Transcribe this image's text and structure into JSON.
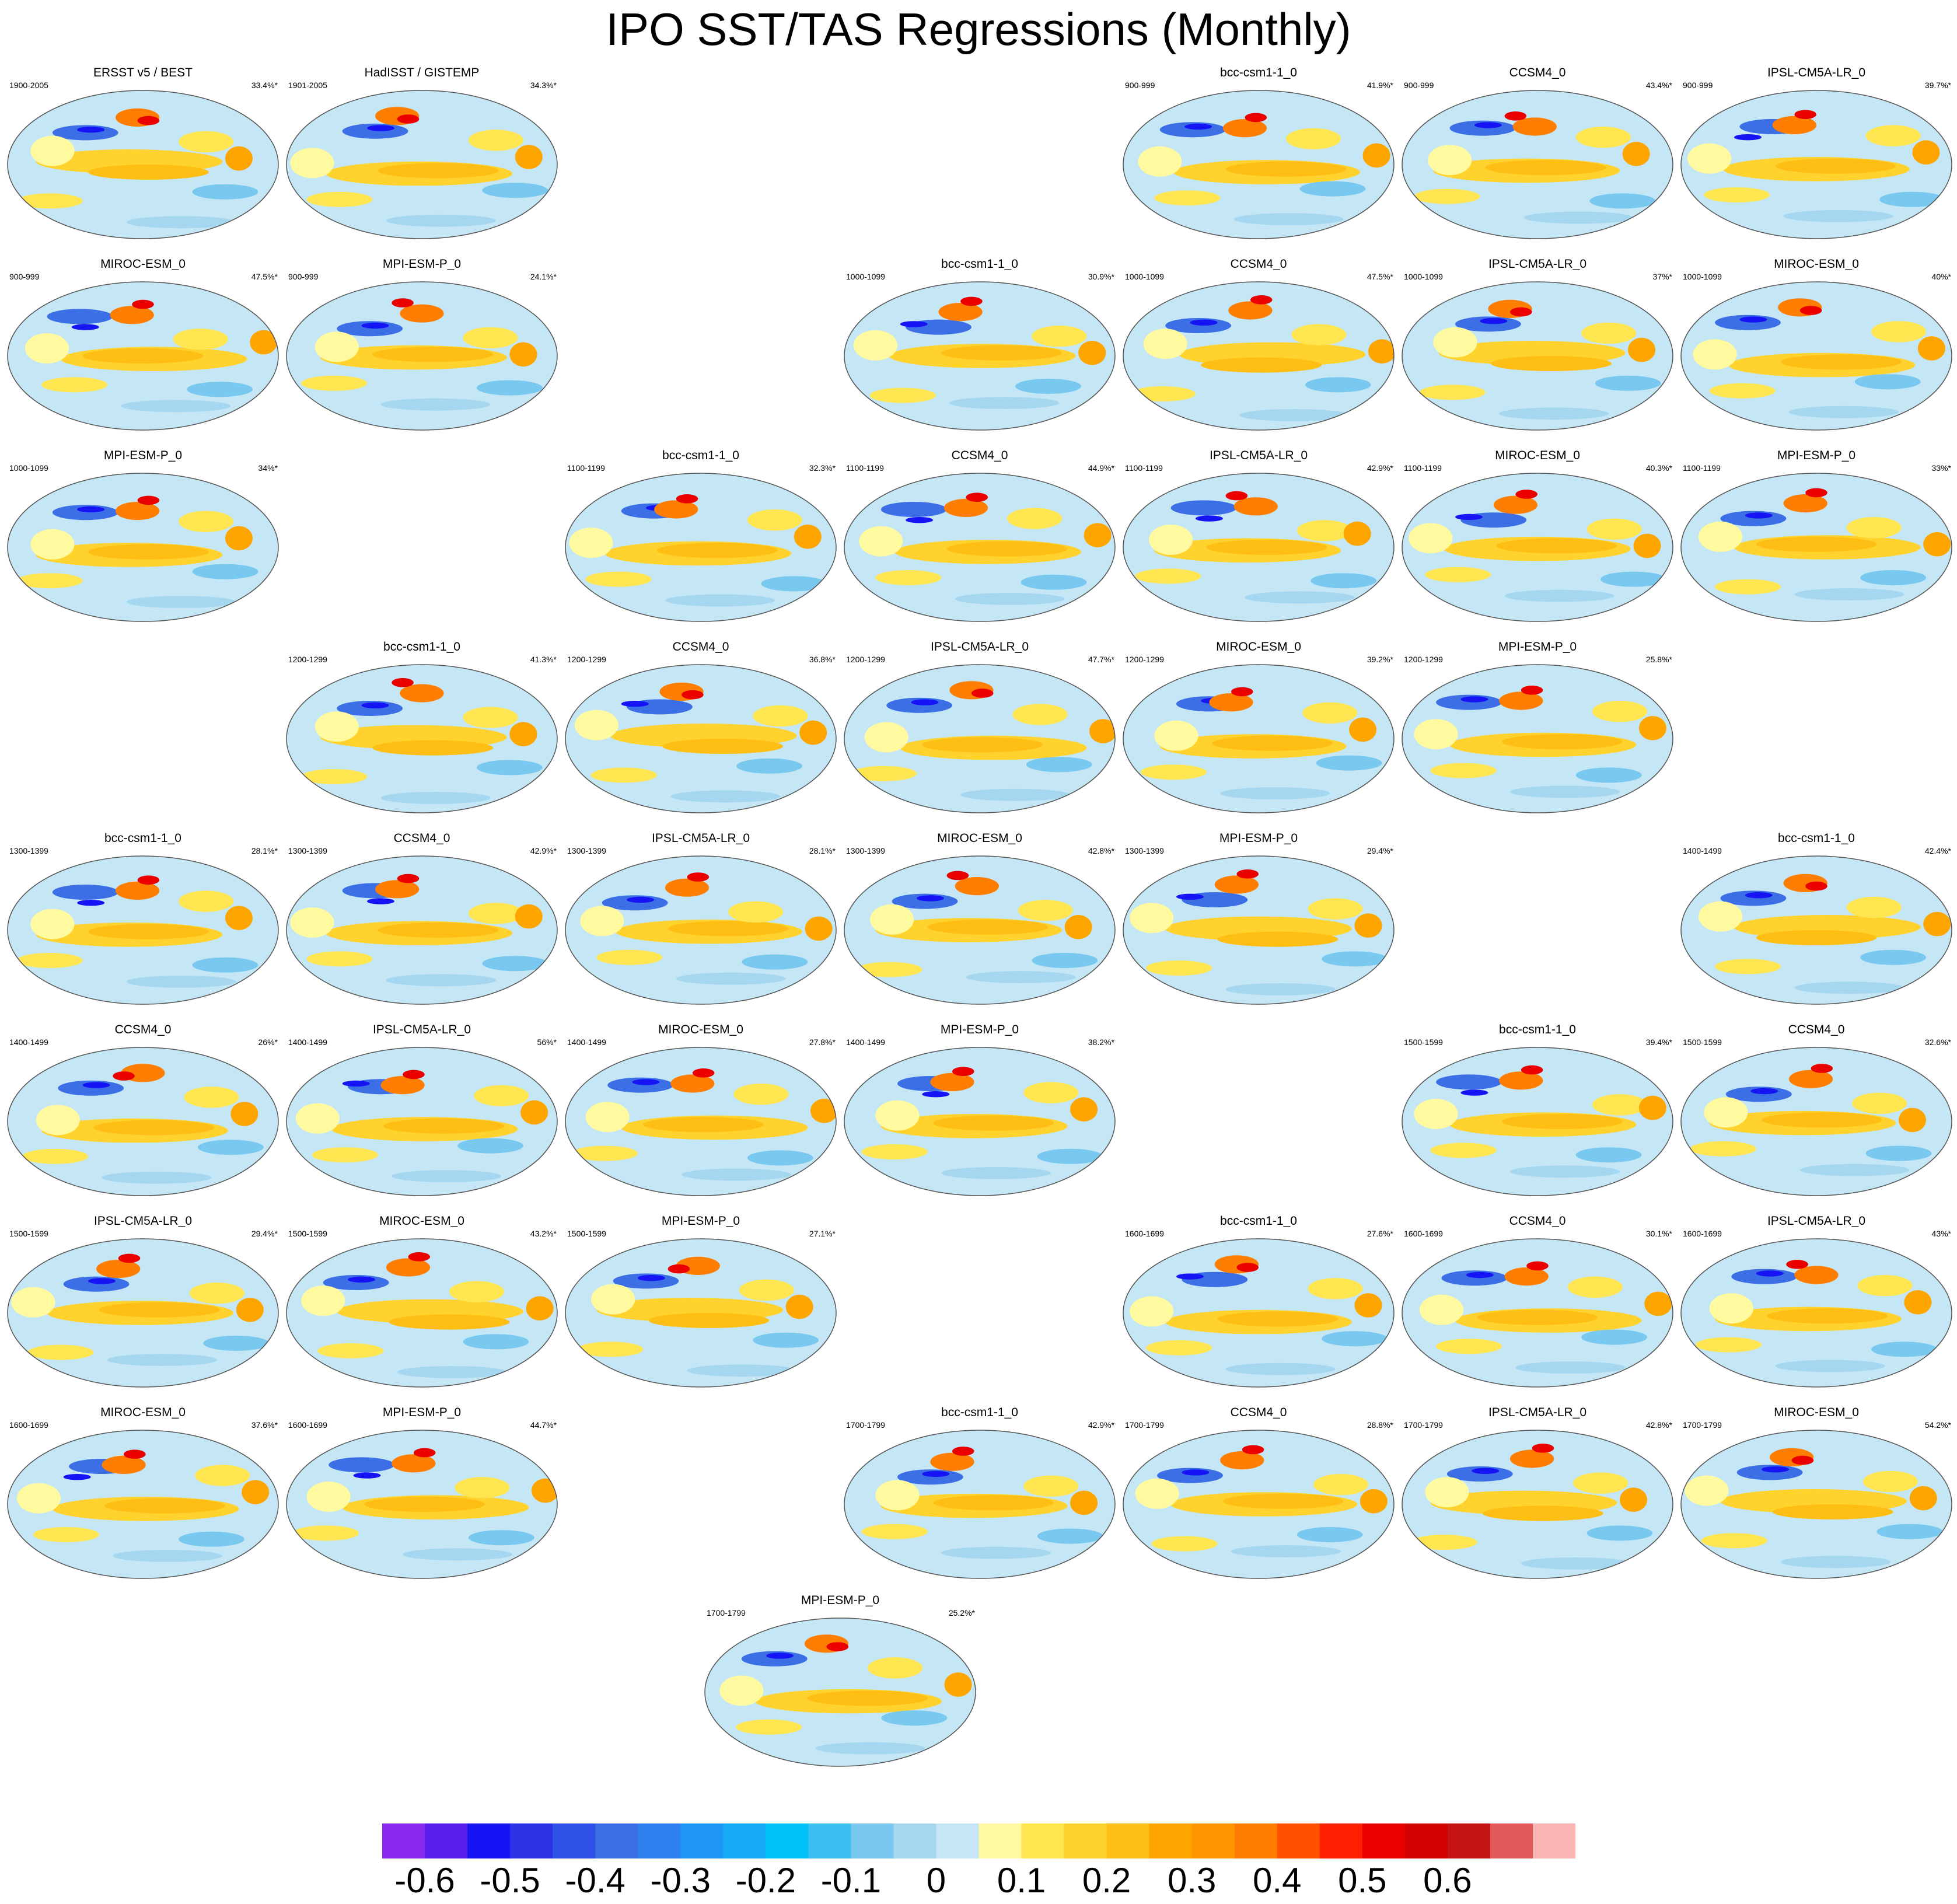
{
  "title": "IPO SST/TAS Regressions (Monthly)",
  "panels": [
    {
      "name": "ERSST v5 / BEST",
      "period": "1900-2005",
      "pct": "33.4%*",
      "slot": "0-0"
    },
    {
      "name": "HadISST / GISTEMP",
      "period": "1901-2005",
      "pct": "34.3%*",
      "slot": "0-1"
    },
    {
      "name": "bcc-csm1-1_0",
      "period": "900-999",
      "pct": "41.9%*",
      "slot": "0-4"
    },
    {
      "name": "CCSM4_0",
      "period": "900-999",
      "pct": "43.4%*",
      "slot": "0-5"
    },
    {
      "name": "IPSL-CM5A-LR_0",
      "period": "900-999",
      "pct": "39.7%*",
      "slot": "0-6"
    },
    {
      "name": "MIROC-ESM_0",
      "period": "900-999",
      "pct": "47.5%*",
      "slot": "1-0"
    },
    {
      "name": "MPI-ESM-P_0",
      "period": "900-999",
      "pct": "24.1%*",
      "slot": "1-1"
    },
    {
      "name": "bcc-csm1-1_0",
      "period": "1000-1099",
      "pct": "30.9%*",
      "slot": "1-3"
    },
    {
      "name": "CCSM4_0",
      "period": "1000-1099",
      "pct": "47.5%*",
      "slot": "1-4"
    },
    {
      "name": "IPSL-CM5A-LR_0",
      "period": "1000-1099",
      "pct": "37%*",
      "slot": "1-5"
    },
    {
      "name": "MIROC-ESM_0",
      "period": "1000-1099",
      "pct": "40%*",
      "slot": "1-6"
    },
    {
      "name": "MPI-ESM-P_0",
      "period": "1000-1099",
      "pct": "34%*",
      "slot": "2-0"
    },
    {
      "name": "bcc-csm1-1_0",
      "period": "1100-1199",
      "pct": "32.3%*",
      "slot": "2-2"
    },
    {
      "name": "CCSM4_0",
      "period": "1100-1199",
      "pct": "44.9%*",
      "slot": "2-3"
    },
    {
      "name": "IPSL-CM5A-LR_0",
      "period": "1100-1199",
      "pct": "42.9%*",
      "slot": "2-4"
    },
    {
      "name": "MIROC-ESM_0",
      "period": "1100-1199",
      "pct": "40.3%*",
      "slot": "2-5"
    },
    {
      "name": "MPI-ESM-P_0",
      "period": "1100-1199",
      "pct": "33%*",
      "slot": "2-6"
    },
    {
      "name": "bcc-csm1-1_0",
      "period": "1200-1299",
      "pct": "41.3%*",
      "slot": "3-1"
    },
    {
      "name": "CCSM4_0",
      "period": "1200-1299",
      "pct": "36.8%*",
      "slot": "3-2"
    },
    {
      "name": "IPSL-CM5A-LR_0",
      "period": "1200-1299",
      "pct": "47.7%*",
      "slot": "3-3"
    },
    {
      "name": "MIROC-ESM_0",
      "period": "1200-1299",
      "pct": "39.2%*",
      "slot": "3-4"
    },
    {
      "name": "MPI-ESM-P_0",
      "period": "1200-1299",
      "pct": "25.8%*",
      "slot": "3-5"
    },
    {
      "name": "bcc-csm1-1_0",
      "period": "1300-1399",
      "pct": "28.1%*",
      "slot": "4-0"
    },
    {
      "name": "CCSM4_0",
      "period": "1300-1399",
      "pct": "42.9%*",
      "slot": "4-1"
    },
    {
      "name": "IPSL-CM5A-LR_0",
      "period": "1300-1399",
      "pct": "28.1%*",
      "slot": "4-2"
    },
    {
      "name": "MIROC-ESM_0",
      "period": "1300-1399",
      "pct": "42.8%*",
      "slot": "4-3"
    },
    {
      "name": "MPI-ESM-P_0",
      "period": "1300-1399",
      "pct": "29.4%*",
      "slot": "4-4"
    },
    {
      "name": "bcc-csm1-1_0",
      "period": "1400-1499",
      "pct": "42.4%*",
      "slot": "4-6"
    },
    {
      "name": "CCSM4_0",
      "period": "1400-1499",
      "pct": "26%*",
      "slot": "5-0"
    },
    {
      "name": "IPSL-CM5A-LR_0",
      "period": "1400-1499",
      "pct": "56%*",
      "slot": "5-1"
    },
    {
      "name": "MIROC-ESM_0",
      "period": "1400-1499",
      "pct": "27.8%*",
      "slot": "5-2"
    },
    {
      "name": "MPI-ESM-P_0",
      "period": "1400-1499",
      "pct": "38.2%*",
      "slot": "5-3"
    },
    {
      "name": "bcc-csm1-1_0",
      "period": "1500-1599",
      "pct": "39.4%*",
      "slot": "5-5"
    },
    {
      "name": "CCSM4_0",
      "period": "1500-1599",
      "pct": "32.6%*",
      "slot": "5-6"
    },
    {
      "name": "IPSL-CM5A-LR_0",
      "period": "1500-1599",
      "pct": "29.4%*",
      "slot": "6-0"
    },
    {
      "name": "MIROC-ESM_0",
      "period": "1500-1599",
      "pct": "43.2%*",
      "slot": "6-1"
    },
    {
      "name": "MPI-ESM-P_0",
      "period": "1500-1599",
      "pct": "27.1%*",
      "slot": "6-2"
    },
    {
      "name": "bcc-csm1-1_0",
      "period": "1600-1699",
      "pct": "27.6%*",
      "slot": "6-4"
    },
    {
      "name": "CCSM4_0",
      "period": "1600-1699",
      "pct": "30.1%*",
      "slot": "6-5"
    },
    {
      "name": "IPSL-CM5A-LR_0",
      "period": "1600-1699",
      "pct": "43%*",
      "slot": "6-6"
    },
    {
      "name": "MIROC-ESM_0",
      "period": "1600-1699",
      "pct": "37.6%*",
      "slot": "7-0"
    },
    {
      "name": "MPI-ESM-P_0",
      "period": "1600-1699",
      "pct": "44.7%*",
      "slot": "7-1"
    },
    {
      "name": "bcc-csm1-1_0",
      "period": "1700-1799",
      "pct": "42.9%*",
      "slot": "7-3"
    },
    {
      "name": "CCSM4_0",
      "period": "1700-1799",
      "pct": "28.8%*",
      "slot": "7-4"
    },
    {
      "name": "IPSL-CM5A-LR_0",
      "period": "1700-1799",
      "pct": "42.8%*",
      "slot": "7-5"
    },
    {
      "name": "MIROC-ESM_0",
      "period": "1700-1799",
      "pct": "54.2%*",
      "slot": "7-6"
    },
    {
      "name": "MPI-ESM-P_0",
      "period": "1700-1799",
      "pct": "25.2%*",
      "slot": "8-2.5"
    }
  ],
  "colorbar": {
    "colors": [
      "#8c29f0",
      "#5a1eeb",
      "#1414f5",
      "#2e32e6",
      "#2e50e6",
      "#3c6ee6",
      "#2d82f0",
      "#1e96f5",
      "#14aaf5",
      "#00c3fa",
      "#3cbef0",
      "#78c8f0",
      "#a5d7f0",
      "#c4e6f5",
      "#fffaa0",
      "#ffe650",
      "#ffd22d",
      "#ffbe14",
      "#ffa500",
      "#ff9600",
      "#ff7d00",
      "#ff5000",
      "#ff1e00",
      "#eb0000",
      "#d20000",
      "#c41414",
      "#e35a5a",
      "#fab4b4"
    ],
    "tick_labels": [
      "-0.6",
      "-0.5",
      "-0.4",
      "-0.3",
      "-0.2",
      "-0.1",
      "0",
      "0.1",
      "0.2",
      "0.3",
      "0.4",
      "0.5",
      "0.6"
    ]
  }
}
